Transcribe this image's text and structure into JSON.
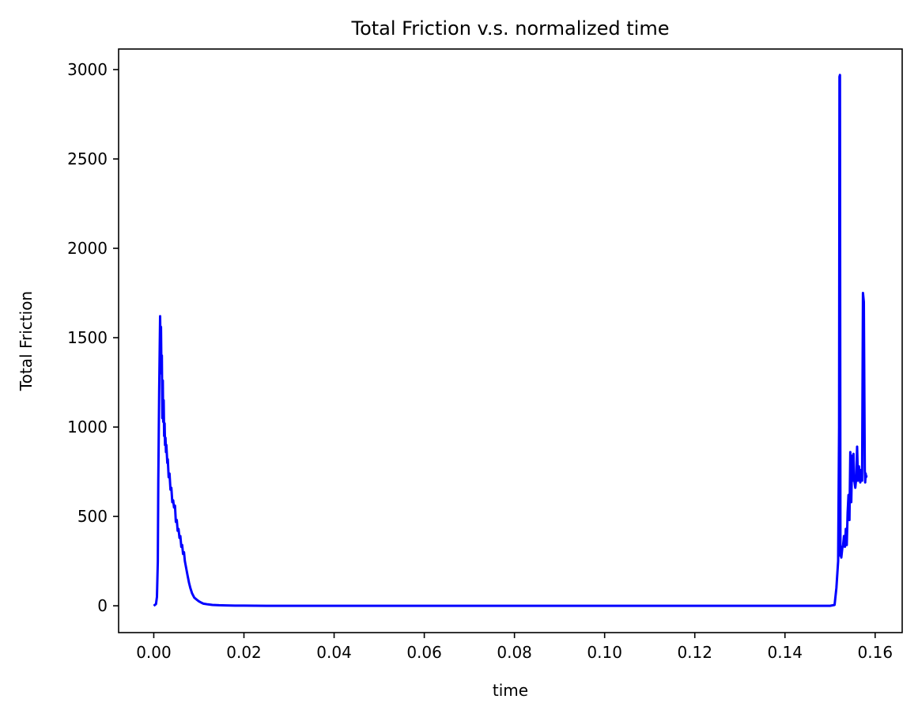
{
  "chart_data": {
    "type": "line",
    "title": "Total Friction v.s. normalized time",
    "xlabel": "time",
    "ylabel": "Total Friction",
    "xlim": [
      -0.0078,
      0.166
    ],
    "ylim": [
      -150,
      3115
    ],
    "xticks": [
      0.0,
      0.02,
      0.04,
      0.06,
      0.08,
      0.1,
      0.12,
      0.14,
      0.16
    ],
    "xtick_labels": [
      "0.00",
      "0.02",
      "0.04",
      "0.06",
      "0.08",
      "0.10",
      "0.12",
      "0.14",
      "0.16"
    ],
    "yticks": [
      0,
      500,
      1000,
      1500,
      2000,
      2500,
      3000
    ],
    "ytick_labels": [
      "0",
      "500",
      "1000",
      "1500",
      "2000",
      "2500",
      "3000"
    ],
    "grid": false,
    "series": [
      {
        "color": "#0000ff",
        "x": [
          0.0,
          0.0005,
          0.0007,
          0.0009,
          0.001,
          0.0012,
          0.0014,
          0.0015,
          0.0016,
          0.0017,
          0.0018,
          0.0019,
          0.002,
          0.0021,
          0.0022,
          0.0023,
          0.0024,
          0.0025,
          0.0026,
          0.0027,
          0.0028,
          0.003,
          0.0031,
          0.0033,
          0.0035,
          0.0037,
          0.0039,
          0.0041,
          0.0043,
          0.0045,
          0.0047,
          0.0049,
          0.0051,
          0.0053,
          0.0055,
          0.0057,
          0.0059,
          0.0061,
          0.0063,
          0.0065,
          0.0067,
          0.0069,
          0.0072,
          0.0075,
          0.0078,
          0.0081,
          0.0085,
          0.009,
          0.0095,
          0.01,
          0.0105,
          0.011,
          0.012,
          0.013,
          0.0145,
          0.016,
          0.018,
          0.02,
          0.025,
          0.03,
          0.04,
          0.06,
          0.08,
          0.1,
          0.12,
          0.14,
          0.15,
          0.151,
          0.1514,
          0.1518,
          0.152,
          0.1521,
          0.1522,
          0.1523,
          0.1524,
          0.1525,
          0.1527,
          0.1529,
          0.1531,
          0.1533,
          0.1535,
          0.1537,
          0.1539,
          0.1541,
          0.1543,
          0.1545,
          0.1547,
          0.1549,
          0.155,
          0.1552,
          0.1553,
          0.1555,
          0.1556,
          0.1558,
          0.156,
          0.1562,
          0.1564,
          0.1566,
          0.1567,
          0.1569,
          0.1571,
          0.1573,
          0.1575,
          0.1577,
          0.1578,
          0.1579,
          0.158,
          0.1581
        ],
        "y": [
          0,
          10,
          50,
          250,
          700,
          1200,
          1620,
          1450,
          1560,
          1300,
          1400,
          1050,
          1260,
          1030,
          1150,
          950,
          1020,
          900,
          940,
          860,
          900,
          800,
          820,
          720,
          740,
          650,
          660,
          580,
          590,
          550,
          560,
          470,
          480,
          420,
          430,
          380,
          390,
          330,
          340,
          290,
          300,
          250,
          210,
          170,
          130,
          100,
          70,
          45,
          35,
          25,
          18,
          12,
          8,
          5,
          3,
          2,
          1,
          1,
          0,
          0,
          0,
          0,
          0,
          0,
          0,
          0,
          0,
          5,
          100,
          250,
          1000,
          2960,
          2970,
          280,
          300,
          270,
          320,
          340,
          390,
          330,
          430,
          340,
          520,
          620,
          480,
          860,
          580,
          840,
          700,
          850,
          720,
          680,
          660,
          710,
          890,
          700,
          780,
          720,
          690,
          760,
          700,
          1750,
          1700,
          760,
          690,
          740,
          720,
          730
        ]
      }
    ]
  }
}
